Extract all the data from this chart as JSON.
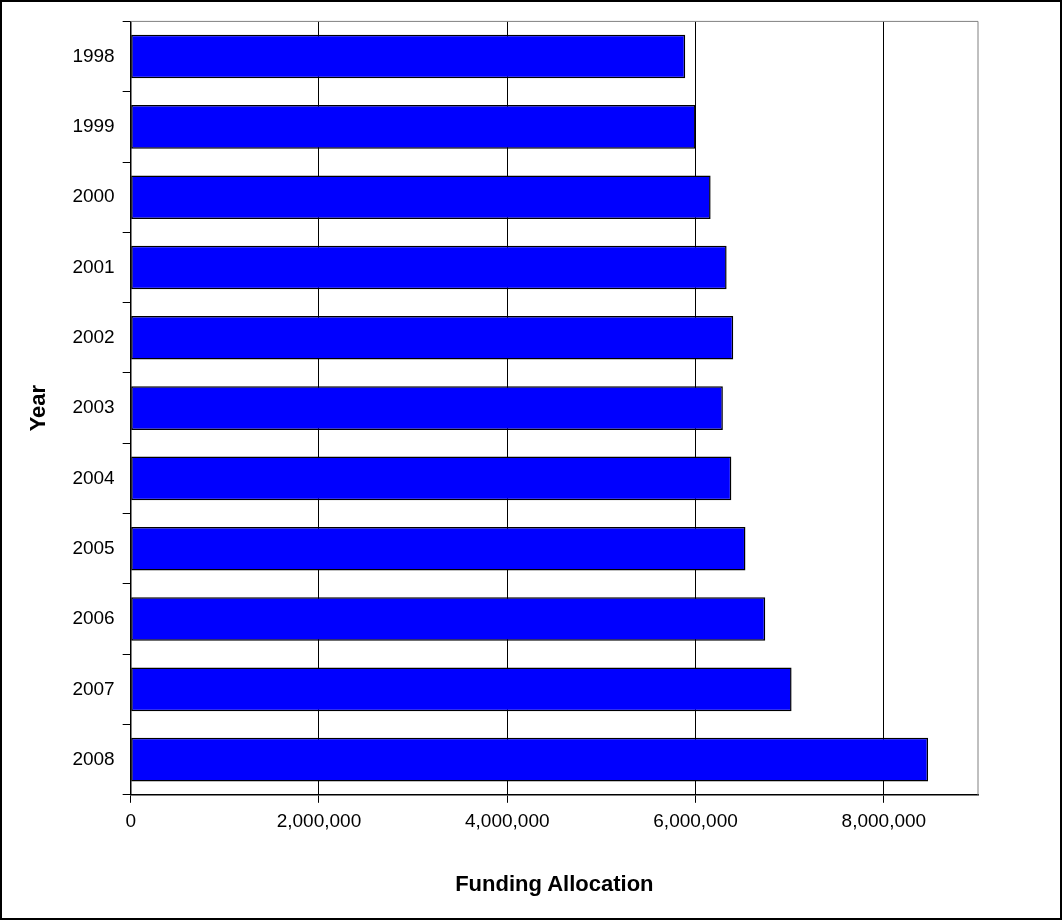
{
  "chart_data": {
    "type": "bar",
    "orientation": "horizontal",
    "xlabel": "Funding Allocation",
    "ylabel": "Year",
    "categories": [
      "1998",
      "1999",
      "2000",
      "2001",
      "2002",
      "2003",
      "2004",
      "2005",
      "2006",
      "2007",
      "2008"
    ],
    "values": [
      5890000,
      6000000,
      6160000,
      6330000,
      6400000,
      6290000,
      6380000,
      6530000,
      6740000,
      7020000,
      8470000
    ],
    "color": "#0000ff",
    "xlim": [
      0,
      9000000
    ],
    "xticks": [
      0,
      {
        "value": 2000000,
        "label": "2,000,000"
      },
      {
        "value": 4000000,
        "label": "4,000,000"
      },
      {
        "value": 6000000,
        "label": "6,000,000"
      },
      {
        "value": 8000000,
        "label": "8,000,000"
      }
    ],
    "grid": "x",
    "legend": false
  }
}
